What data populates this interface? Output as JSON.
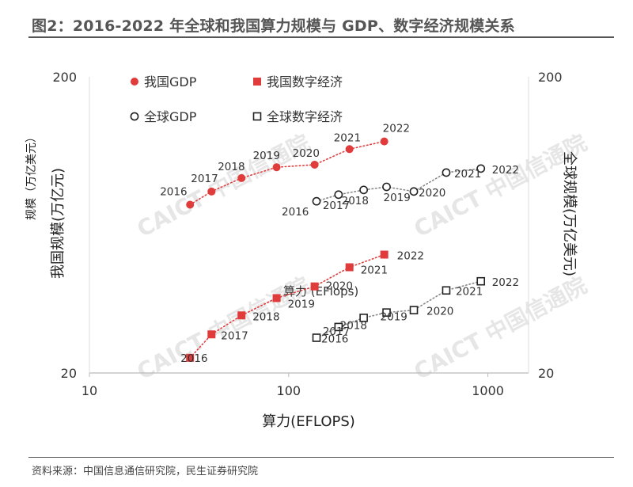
{
  "title": "图2：2016-2022 年全球和我国算力规模与 GDP、数字经济规模关系",
  "source": "资料来源：中国信息通信研究院，民生证券研究院",
  "watermark": "CAICT 中国信通院",
  "chart_data": {
    "type": "scatter",
    "x_scale": "log",
    "y_scale": "log",
    "xlim": [
      10,
      1600
    ],
    "ylim": [
      20,
      200
    ],
    "xlabel": "算力(EFLOPS)",
    "ylabel_left": "我国规模(万亿元)",
    "ylabel_left_small": "规模（万亿美元）",
    "ylabel_right": "全球规模(万亿美元)",
    "xlabel_inner": "算力 (EFlops)",
    "x_ticks": [
      {
        "value": 10,
        "label": "10"
      },
      {
        "value": 100,
        "label": "100"
      },
      {
        "value": 1000,
        "label": "1000"
      }
    ],
    "y_ticks_left": [
      {
        "value": 20,
        "label": "20"
      },
      {
        "value": 200,
        "label": "200"
      }
    ],
    "y_ticks_right": [
      {
        "value": 20,
        "label": "20"
      },
      {
        "value": 200,
        "label": "200"
      }
    ],
    "legend": [
      {
        "name": "我国GDP",
        "marker": "filled-circle",
        "color": "#e03c3c"
      },
      {
        "name": "我国数字经济",
        "marker": "filled-square",
        "color": "#e03c3c"
      },
      {
        "name": "全球GDP",
        "marker": "open-circle",
        "color": "#222222"
      },
      {
        "name": "全球数字经济",
        "marker": "open-square",
        "color": "#222222"
      }
    ],
    "series": [
      {
        "name": "我国GDP",
        "marker": "filled-circle",
        "color": "#e03c3c",
        "points": [
          {
            "year": "2016",
            "x": 32,
            "y": 74
          },
          {
            "year": "2017",
            "x": 41,
            "y": 82
          },
          {
            "year": "2018",
            "x": 58,
            "y": 91
          },
          {
            "year": "2019",
            "x": 87,
            "y": 99
          },
          {
            "year": "2020",
            "x": 135,
            "y": 101
          },
          {
            "year": "2021",
            "x": 202,
            "y": 114
          },
          {
            "year": "2022",
            "x": 302,
            "y": 121
          }
        ]
      },
      {
        "name": "我国数字经济",
        "marker": "filled-square",
        "color": "#e03c3c",
        "points": [
          {
            "year": "2016",
            "x": 32,
            "y": 22.5
          },
          {
            "year": "2017",
            "x": 41,
            "y": 27
          },
          {
            "year": "2018",
            "x": 58,
            "y": 31.3
          },
          {
            "year": "2019",
            "x": 87,
            "y": 35.8
          },
          {
            "year": "2020",
            "x": 135,
            "y": 39.2
          },
          {
            "year": "2021",
            "x": 202,
            "y": 45.5
          },
          {
            "year": "2022",
            "x": 302,
            "y": 50.2
          }
        ]
      },
      {
        "name": "全球GDP",
        "marker": "open-circle",
        "color": "#222222",
        "points": [
          {
            "year": "2016",
            "x": 138,
            "y": 76
          },
          {
            "year": "2017",
            "x": 178,
            "y": 80
          },
          {
            "year": "2018",
            "x": 238,
            "y": 83
          },
          {
            "year": "2019",
            "x": 310,
            "y": 85
          },
          {
            "year": "2020",
            "x": 425,
            "y": 82
          },
          {
            "year": "2021",
            "x": 618,
            "y": 95
          },
          {
            "year": "2022",
            "x": 922,
            "y": 98
          }
        ]
      },
      {
        "name": "全球数字经济",
        "marker": "open-square",
        "color": "#222222",
        "points": [
          {
            "year": "2016",
            "x": 138,
            "y": 26.3
          },
          {
            "year": "2017",
            "x": 178,
            "y": 28.6
          },
          {
            "year": "2018",
            "x": 238,
            "y": 30.7
          },
          {
            "year": "2019",
            "x": 310,
            "y": 32
          },
          {
            "year": "2020",
            "x": 425,
            "y": 32.6
          },
          {
            "year": "2021",
            "x": 618,
            "y": 38
          },
          {
            "year": "2022",
            "x": 922,
            "y": 40.8
          }
        ]
      }
    ]
  }
}
